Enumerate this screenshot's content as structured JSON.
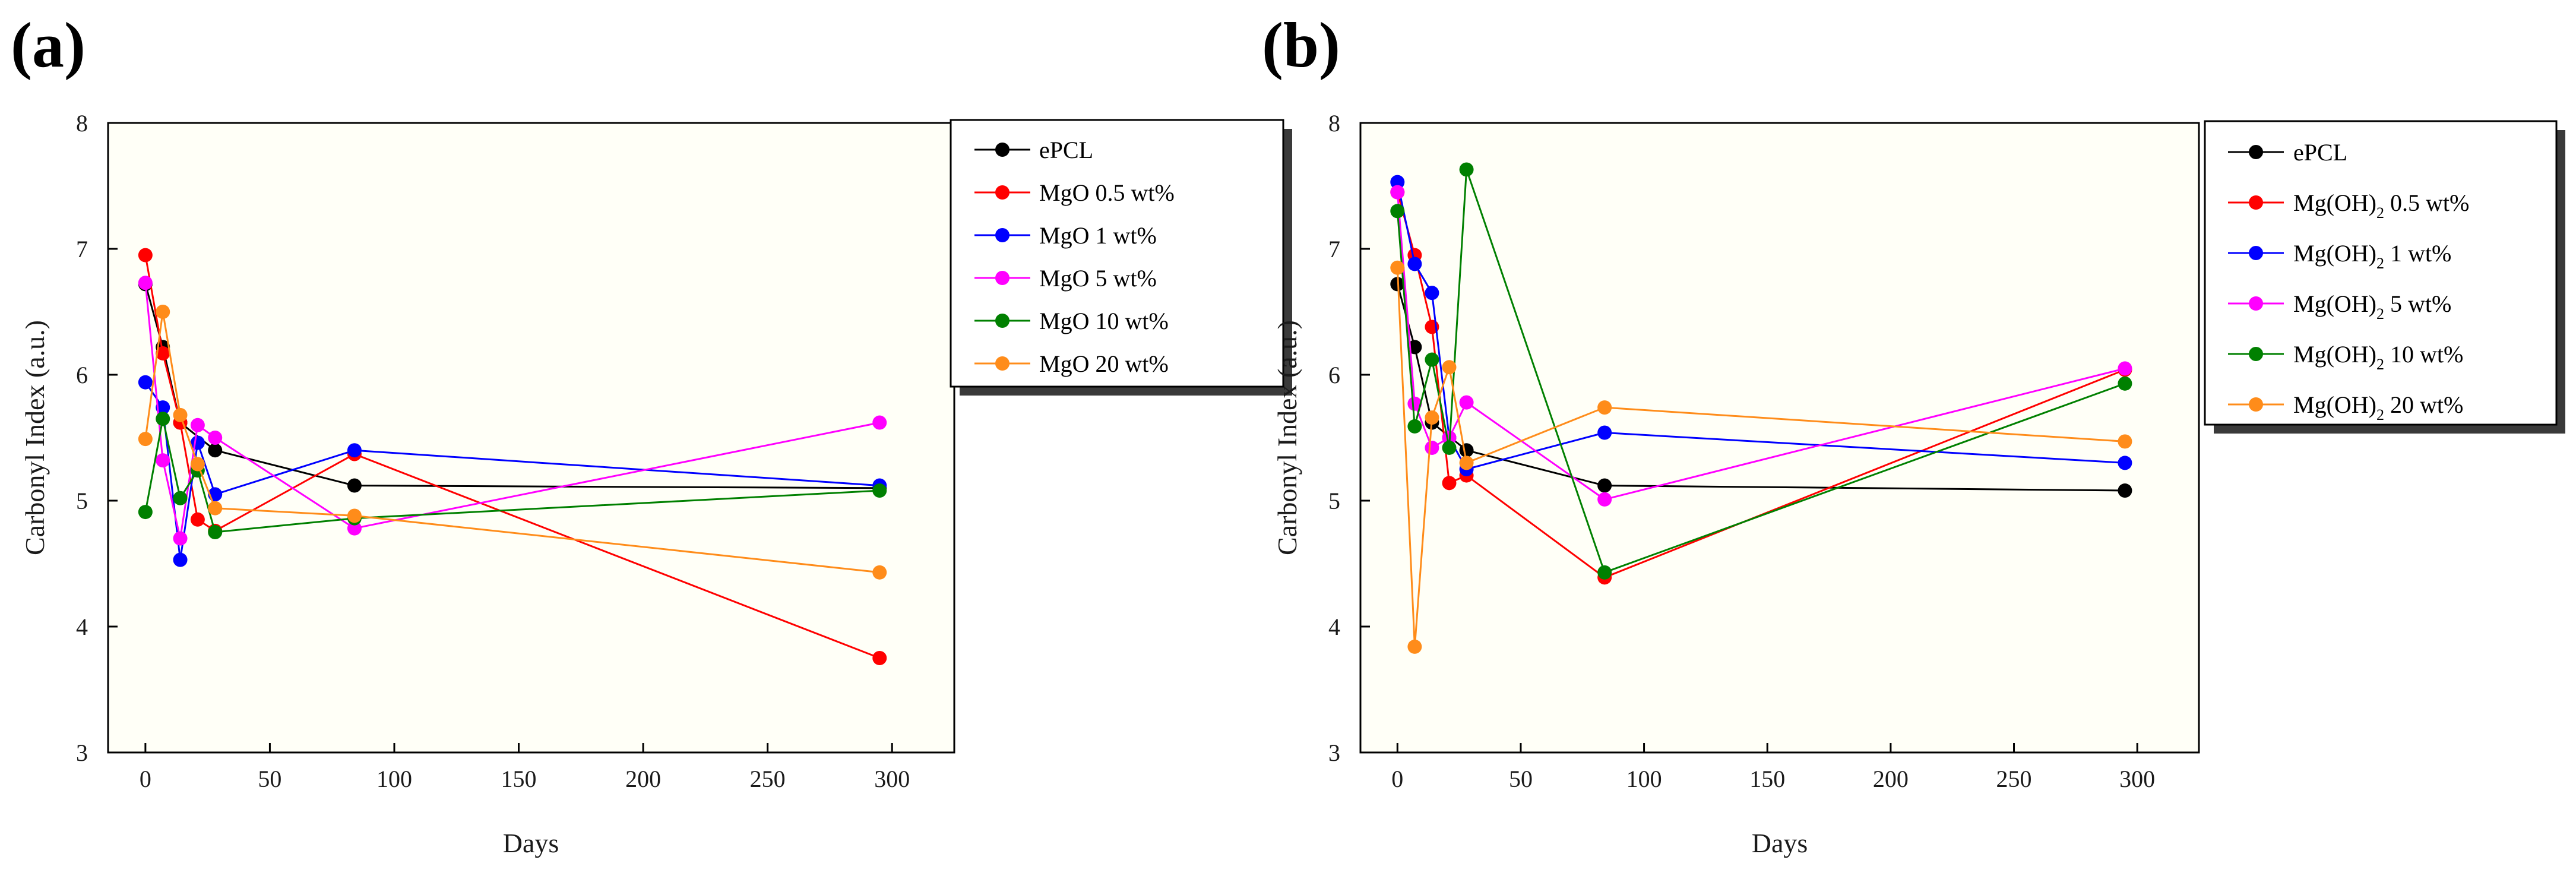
{
  "chart_data": [
    {
      "type": "line",
      "panel_label": "(a)",
      "xlabel": "Days",
      "ylabel": "Carbonyl Index (a.u.)",
      "xlim": [
        -15,
        325
      ],
      "ylim": [
        3,
        8
      ],
      "xticks": [
        0,
        50,
        100,
        150,
        200,
        250,
        300
      ],
      "yticks": [
        3,
        4,
        5,
        6,
        7,
        8
      ],
      "legend_position": "top-right",
      "series": [
        {
          "name": "ePCL",
          "color": "#000000",
          "x": [
            0,
            7,
            14,
            28,
            84,
            295
          ],
          "y": [
            6.72,
            6.22,
            5.62,
            5.4,
            5.12,
            5.1
          ]
        },
        {
          "name": "MgO 0.5 wt%",
          "color": "#ff0000",
          "x": [
            0,
            7,
            14,
            21,
            28,
            84,
            295
          ],
          "y": [
            6.95,
            6.17,
            5.62,
            4.85,
            4.76,
            5.37,
            3.75
          ]
        },
        {
          "name": "MgO 1 wt%",
          "color": "#0000ff",
          "x": [
            0,
            7,
            14,
            21,
            28,
            84,
            295
          ],
          "y": [
            5.94,
            5.74,
            4.53,
            5.46,
            5.05,
            5.4,
            5.12
          ]
        },
        {
          "name": "MgO 5 wt%",
          "color": "#ff00ff",
          "x": [
            0,
            7,
            14,
            21,
            28,
            84,
            295
          ],
          "y": [
            6.73,
            5.32,
            4.7,
            5.6,
            5.5,
            4.78,
            5.62
          ]
        },
        {
          "name": "MgO 10 wt%",
          "color": "#008000",
          "x": [
            0,
            7,
            14,
            21,
            28,
            84,
            295
          ],
          "y": [
            4.91,
            5.65,
            5.02,
            5.24,
            4.75,
            4.86,
            5.08
          ]
        },
        {
          "name": "MgO 20 wt%",
          "color": "#ff8c1a",
          "x": [
            0,
            7,
            14,
            21,
            28,
            84,
            295
          ],
          "y": [
            5.49,
            6.5,
            5.68,
            5.29,
            4.94,
            4.88,
            4.43
          ]
        }
      ]
    },
    {
      "type": "line",
      "panel_label": "(b)",
      "xlabel": "Days",
      "ylabel": "Carbonyl Index (a.u.)",
      "xlim": [
        -15,
        325
      ],
      "ylim": [
        3,
        8
      ],
      "xticks": [
        0,
        50,
        100,
        150,
        200,
        250,
        300
      ],
      "yticks": [
        3,
        4,
        5,
        6,
        7,
        8
      ],
      "legend_position": "top-right",
      "series": [
        {
          "name": "ePCL",
          "color": "#000000",
          "x": [
            0,
            7,
            14,
            28,
            84,
            295
          ],
          "y": [
            6.72,
            6.22,
            5.62,
            5.4,
            5.12,
            5.08
          ]
        },
        {
          "name": "Mg(OH)2 0.5 wt%",
          "label_main": "Mg(OH)",
          "label_sub": "2",
          "label_tail": " 0.5 wt%",
          "color": "#ff0000",
          "x": [
            0,
            7,
            14,
            21,
            28,
            84,
            295
          ],
          "y": [
            7.45,
            6.95,
            6.38,
            5.14,
            5.2,
            4.39,
            6.04
          ]
        },
        {
          "name": "Mg(OH)2 1 wt%",
          "label_main": "Mg(OH)",
          "label_sub": "2",
          "label_tail": " 1 wt%",
          "color": "#0000ff",
          "x": [
            0,
            7,
            14,
            21,
            28,
            84,
            295
          ],
          "y": [
            7.53,
            6.88,
            6.65,
            5.5,
            5.25,
            5.54,
            5.3
          ]
        },
        {
          "name": "Mg(OH)2 5 wt%",
          "label_main": "Mg(OH)",
          "label_sub": "2",
          "label_tail": " 5 wt%",
          "color": "#ff00ff",
          "x": [
            0,
            7,
            14,
            21,
            28,
            84,
            295
          ],
          "y": [
            7.45,
            5.77,
            5.42,
            5.5,
            5.78,
            5.01,
            6.05
          ]
        },
        {
          "name": "Mg(OH)2 10 wt%",
          "label_main": "Mg(OH)",
          "label_sub": "2",
          "label_tail": " 10 wt%",
          "color": "#008000",
          "x": [
            0,
            7,
            14,
            21,
            28,
            84,
            295
          ],
          "y": [
            7.3,
            5.59,
            6.12,
            5.42,
            7.63,
            4.43,
            5.93
          ]
        },
        {
          "name": "Mg(OH)2 20 wt%",
          "label_main": "Mg(OH)",
          "label_sub": "2",
          "label_tail": " 20 wt%",
          "color": "#ff8c1a",
          "x": [
            0,
            7,
            14,
            21,
            28,
            84,
            295
          ],
          "y": [
            6.85,
            3.84,
            5.66,
            6.06,
            5.3,
            5.74,
            5.47
          ]
        }
      ]
    }
  ]
}
